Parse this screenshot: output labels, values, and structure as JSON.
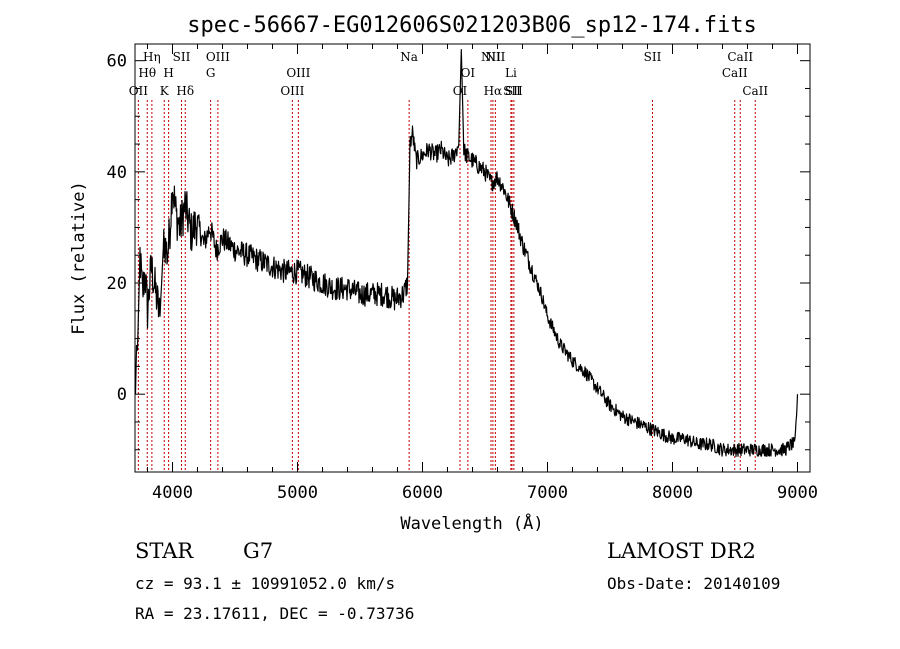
{
  "chart_data": {
    "type": "line",
    "title": "spec-56667-EG012606S021203B06_sp12-174.fits",
    "xlabel": "Wavelength (Å)",
    "ylabel": "Flux (relative)",
    "xlim": [
      3700,
      9100
    ],
    "ylim": [
      -14,
      63
    ],
    "xticks": [
      4000,
      5000,
      6000,
      7000,
      8000,
      9000
    ],
    "yticks": [
      0,
      20,
      40,
      60
    ],
    "grid": false,
    "series": [
      {
        "x": [
          3700,
          3720,
          3740,
          3760,
          3780,
          3800,
          3830,
          3860,
          3900,
          3930,
          3960,
          3980,
          4000,
          4030,
          4060,
          4100,
          4150,
          4200,
          4250,
          4300,
          4350,
          4400,
          4500,
          4600,
          4700,
          4800,
          4900,
          5000,
          5100,
          5200,
          5300,
          5400,
          5500,
          5600,
          5700,
          5780,
          5850,
          5880,
          5900,
          5920,
          5950,
          6000,
          6050,
          6100,
          6150,
          6200,
          6250,
          6290,
          6310,
          6330,
          6350,
          6400,
          6450,
          6500,
          6550,
          6600,
          6650,
          6700,
          6750,
          6800,
          6850,
          6900,
          6950,
          7000,
          7100,
          7200,
          7300,
          7400,
          7500,
          7600,
          7700,
          7800,
          7900,
          8000,
          8100,
          8200,
          8300,
          8400,
          8500,
          8600,
          8700,
          8800,
          8900,
          8950,
          8980,
          9000
        ],
        "y": [
          0,
          8,
          25,
          18,
          22,
          15,
          23,
          19,
          14,
          28,
          25,
          30,
          38,
          32,
          30,
          34,
          29,
          31,
          27,
          30,
          26,
          28,
          26,
          25,
          24,
          23,
          22,
          22,
          21,
          20,
          19,
          19,
          18,
          18,
          18,
          17,
          18,
          20,
          45,
          47,
          42,
          43,
          44,
          43,
          44,
          42,
          43,
          45,
          62,
          44,
          43,
          42,
          41,
          40,
          38,
          39,
          37,
          34,
          31,
          27,
          24,
          21,
          18,
          14,
          9,
          6,
          4,
          1,
          -2,
          -4,
          -5,
          -6,
          -7,
          -8,
          -8,
          -9,
          -9,
          -10,
          -10,
          -10,
          -10,
          -10,
          -10,
          -9,
          -9,
          0
        ]
      }
    ],
    "line_markers": [
      {
        "label": "OII",
        "x": 3727,
        "row": 3
      },
      {
        "label": "Hθ",
        "x": 3798,
        "row": 2
      },
      {
        "label": "Hη",
        "x": 3835,
        "row": 1
      },
      {
        "label": "K",
        "x": 3934,
        "row": 3
      },
      {
        "label": "H",
        "x": 3969,
        "row": 2
      },
      {
        "label": "SII",
        "x": 4072,
        "row": 1
      },
      {
        "label": "Hδ",
        "x": 4102,
        "row": 3
      },
      {
        "label": "G",
        "x": 4305,
        "row": 2
      },
      {
        "label": "OIII",
        "x": 4363,
        "row": 1
      },
      {
        "label": "OIII",
        "x": 4959,
        "row": 3
      },
      {
        "label": "OIII",
        "x": 5007,
        "row": 2
      },
      {
        "label": "Na",
        "x": 5893,
        "row": 1
      },
      {
        "label": "OI",
        "x": 6300,
        "row": 3
      },
      {
        "label": "OI",
        "x": 6363,
        "row": 2
      },
      {
        "label": "NII",
        "x": 6548,
        "row": 1
      },
      {
        "label": "Hα",
        "x": 6563,
        "row": 3
      },
      {
        "label": "NII",
        "x": 6583,
        "row": 1
      },
      {
        "label": "Li",
        "x": 6707,
        "row": 2
      },
      {
        "label": "SII",
        "x": 6716,
        "row": 3
      },
      {
        "label": "SII",
        "x": 6731,
        "row": 3
      },
      {
        "label": "SII",
        "x": 7840,
        "row": 1
      },
      {
        "label": "CaII",
        "x": 8498,
        "row": 2
      },
      {
        "label": "CaII",
        "x": 8542,
        "row": 1
      },
      {
        "label": "CaII",
        "x": 8662,
        "row": 3
      }
    ],
    "marker_color": "#c00000"
  },
  "info": {
    "class": "STAR",
    "subclass": "G7",
    "survey": "LAMOST DR2",
    "cz": "cz = 93.1 ± 10991052.0 km/s",
    "obs_date": "Obs-Date: 20140109",
    "coords": "RA =  23.17611, DEC =  -0.73736"
  }
}
